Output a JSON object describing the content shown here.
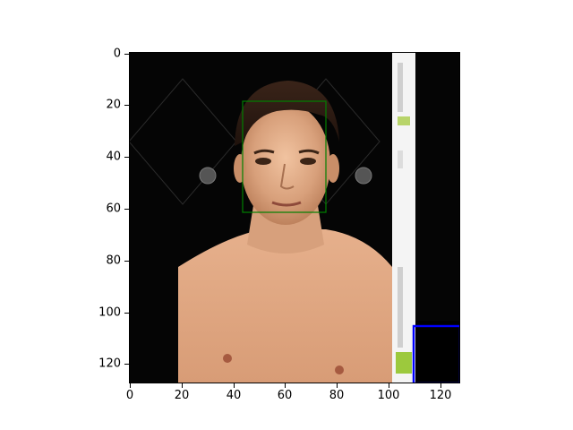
{
  "figure": {
    "type": "image_with_annotation_boxes",
    "xticks": [
      "0",
      "20",
      "40",
      "60",
      "80",
      "100",
      "120"
    ],
    "yticks": [
      "0",
      "20",
      "40",
      "60",
      "80",
      "100",
      "120"
    ],
    "image_extent_data_units": [
      0,
      128,
      128,
      0
    ],
    "overlays": [
      {
        "name": "face-box",
        "color": "#008000",
        "x": 44,
        "y": 19,
        "w": 32,
        "h": 43
      },
      {
        "name": "corner-box",
        "color": "#0000ff",
        "x": 110,
        "y": 106,
        "w": 18,
        "h": 22
      }
    ]
  },
  "photo": {
    "subject": "shirtless man portrait on dark background with watermark",
    "background_color": "#000000"
  }
}
